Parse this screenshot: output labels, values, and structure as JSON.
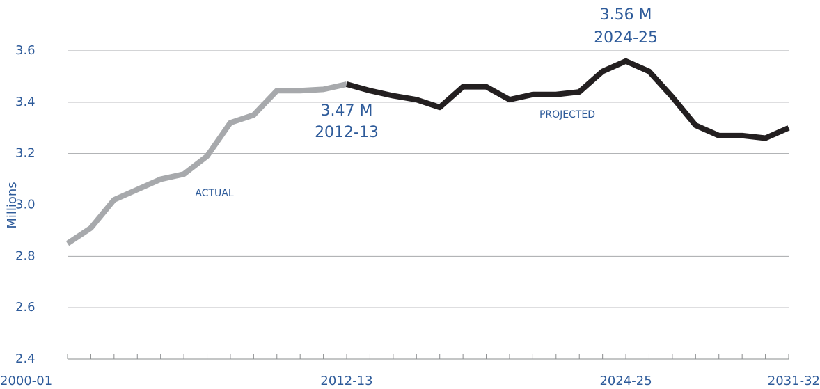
{
  "chart_data": {
    "type": "line",
    "y_label": "Millions",
    "categories": [
      "2000-01",
      null,
      null,
      null,
      null,
      null,
      null,
      null,
      null,
      null,
      null,
      null,
      "2012-13",
      null,
      null,
      null,
      null,
      null,
      null,
      null,
      null,
      null,
      null,
      null,
      "2024-25",
      null,
      null,
      null,
      null,
      null,
      null,
      "2031-32"
    ],
    "series": [
      {
        "name": "ACTUAL",
        "color": "#a7a9ac",
        "values": [
          2.85,
          2.91,
          3.02,
          3.06,
          3.1,
          3.12,
          3.19,
          3.32,
          3.35,
          3.445,
          3.445,
          3.45,
          3.47,
          null,
          null,
          null,
          null,
          null,
          null,
          null,
          null,
          null,
          null,
          null,
          null,
          null,
          null,
          null,
          null,
          null,
          null,
          null
        ]
      },
      {
        "name": "PROJECTED",
        "color": "#231f20",
        "values": [
          null,
          null,
          null,
          null,
          null,
          null,
          null,
          null,
          null,
          null,
          null,
          null,
          3.47,
          3.445,
          3.425,
          3.41,
          3.38,
          3.46,
          3.46,
          3.41,
          3.43,
          3.43,
          3.44,
          3.52,
          3.56,
          3.52,
          3.42,
          3.31,
          3.27,
          3.27,
          3.26,
          3.3
        ],
        "value_labels": [
          null,
          null,
          null,
          null,
          null,
          null,
          null,
          null,
          null,
          null,
          null,
          null,
          "3.47 M",
          null,
          null,
          null,
          null,
          null,
          null,
          null,
          null,
          null,
          null,
          null,
          "3.56 M",
          null,
          null,
          null,
          null,
          null,
          null,
          null
        ]
      }
    ],
    "ylim": [
      2.4,
      3.6
    ],
    "yticks": [
      2.4,
      2.6,
      2.8,
      {
        "value": 3,
        "label": "3.0"
      },
      3.2,
      3.4,
      3.6
    ],
    "grid": true
  }
}
